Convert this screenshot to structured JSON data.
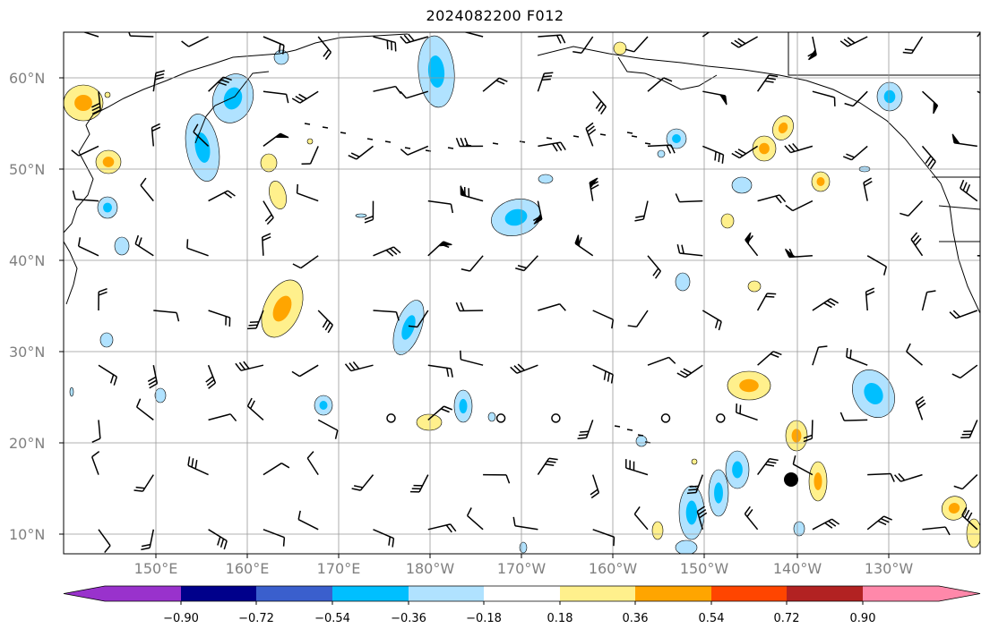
{
  "title": "2024082200 F012",
  "map": {
    "lat_ticks": [
      "60°N",
      "50°N",
      "40°N",
      "30°N",
      "20°N",
      "10°N"
    ],
    "lon_ticks": [
      "150°E",
      "160°E",
      "170°E",
      "180°W",
      "170°W",
      "160°W",
      "150°W",
      "140°W",
      "130°W"
    ],
    "grid": true,
    "marker_color": "#000000"
  },
  "colorbar": {
    "labels": [
      "−0.90",
      "−0.72",
      "−0.54",
      "−0.36",
      "−0.18",
      "0.18",
      "0.36",
      "0.54",
      "0.72",
      "0.90"
    ],
    "colors": [
      "#9932cc",
      "#00008b",
      "#3a5fcd",
      "#00bfff",
      "#b0e2ff",
      "#ffffff",
      "#fff08c",
      "#ffa500",
      "#ff4500",
      "#b22222",
      "#ff88aa"
    ],
    "extend": "both"
  },
  "shading_colors": {
    "neg_light": "#b0e2ff",
    "neg_mid": "#00bfff",
    "pos_light": "#fff08c",
    "pos_mid": "#ffa500"
  }
}
